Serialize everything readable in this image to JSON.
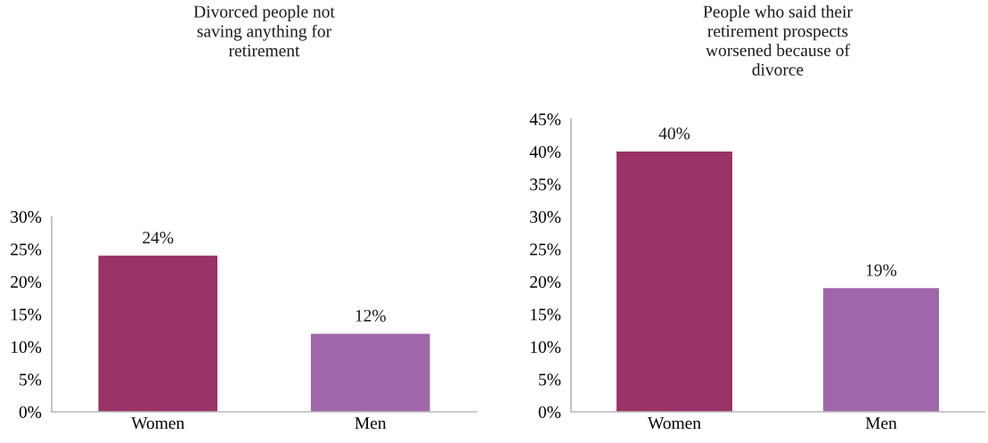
{
  "chart_data": [
    {
      "type": "bar",
      "title": "Divorced people not\nsaving anything for\nretirement",
      "categories": [
        "Women",
        "Men"
      ],
      "values": [
        24,
        12
      ],
      "colors": [
        "#993366",
        "#a066aa"
      ],
      "value_labels": [
        "24%",
        "12%"
      ],
      "ylim": [
        0,
        30
      ],
      "yticks": [
        {
          "value": 0,
          "label": "0%"
        },
        {
          "value": 5,
          "label": "5%"
        },
        {
          "value": 10,
          "label": "10%"
        },
        {
          "value": 15,
          "label": "15%"
        },
        {
          "value": 20,
          "label": "20%"
        },
        {
          "value": 25,
          "label": "25%"
        },
        {
          "value": 30,
          "label": "30%"
        }
      ]
    },
    {
      "type": "bar",
      "title": "People who said their\nretirement prospects\nworsened because of\ndivorce",
      "categories": [
        "Women",
        "Men"
      ],
      "values": [
        40,
        19
      ],
      "colors": [
        "#993366",
        "#a066aa"
      ],
      "value_labels": [
        "40%",
        "19%"
      ],
      "ylim": [
        0,
        45
      ],
      "yticks": [
        {
          "value": 0,
          "label": "0%"
        },
        {
          "value": 5,
          "label": "5%"
        },
        {
          "value": 10,
          "label": "10%"
        },
        {
          "value": 15,
          "label": "15%"
        },
        {
          "value": 20,
          "label": "20%"
        },
        {
          "value": 25,
          "label": "25%"
        },
        {
          "value": 30,
          "label": "30%"
        },
        {
          "value": 35,
          "label": "35%"
        },
        {
          "value": 40,
          "label": "40%"
        },
        {
          "value": 45,
          "label": "45%"
        }
      ]
    }
  ]
}
